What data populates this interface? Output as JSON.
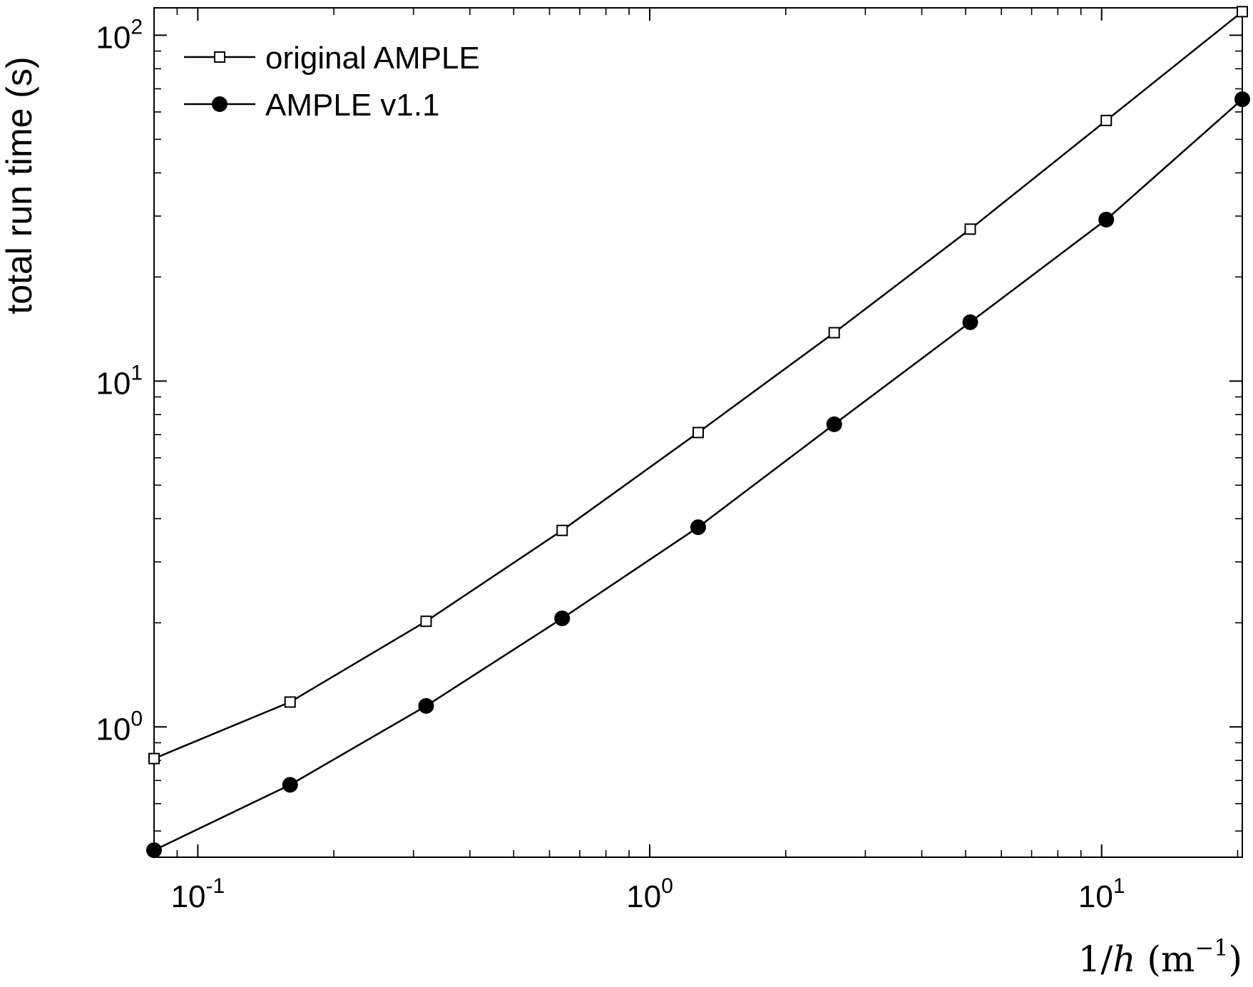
{
  "chart_data": {
    "type": "line",
    "title": "",
    "xlabel": "1/h (m⁻¹)",
    "xlabel_parts": {
      "numerator": "1/",
      "var": "h",
      "unit_open": " (m",
      "unit_exp": "−1",
      "unit_close": ")"
    },
    "ylabel": "total run time (s)",
    "xscale": "log",
    "yscale": "log",
    "xlim": [
      0.08,
      20.48
    ],
    "ylim": [
      0.42,
      120
    ],
    "grid": false,
    "legend_position": "top-left",
    "x_ticks": [
      {
        "base": "10",
        "exp": "-1",
        "value": 0.1
      },
      {
        "base": "10",
        "exp": "0",
        "value": 1
      },
      {
        "base": "10",
        "exp": "1",
        "value": 10
      }
    ],
    "y_ticks": [
      {
        "base": "10",
        "exp": "0",
        "value": 1
      },
      {
        "base": "10",
        "exp": "1",
        "value": 10
      },
      {
        "base": "10",
        "exp": "2",
        "value": 100
      }
    ],
    "x": [
      0.08,
      0.16,
      0.32,
      0.64,
      1.28,
      2.56,
      5.12,
      10.24,
      20.48
    ],
    "series": [
      {
        "name": "original AMPLE",
        "marker": "open-square",
        "color": "#000000",
        "values": [
          0.81,
          1.18,
          2.02,
          3.7,
          7.1,
          13.8,
          27.5,
          56.7,
          117
        ]
      },
      {
        "name": "AMPLE v1.1",
        "marker": "filled-circle",
        "color": "#000000",
        "values": [
          0.44,
          0.68,
          1.15,
          2.06,
          3.78,
          7.5,
          14.8,
          29.3,
          65.3
        ]
      }
    ]
  }
}
